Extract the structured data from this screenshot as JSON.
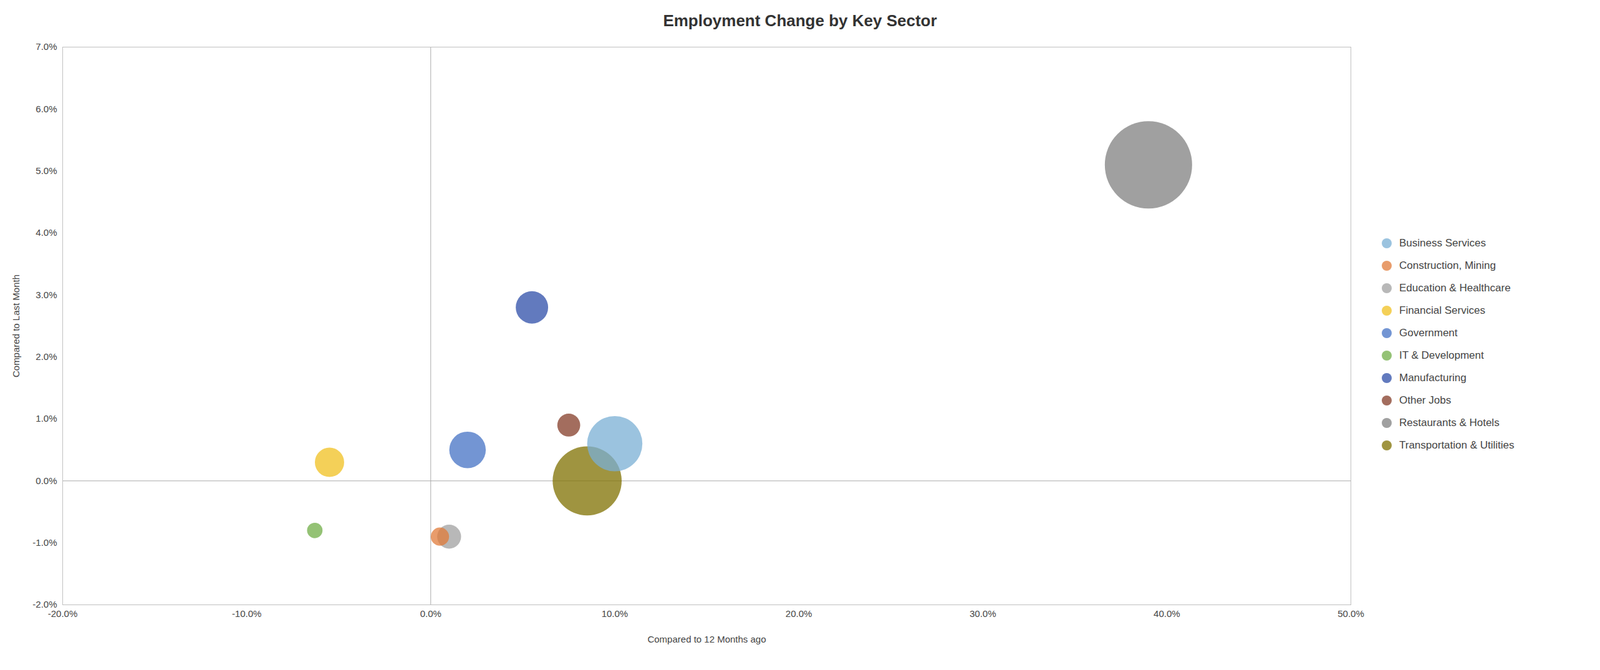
{
  "chart_data": {
    "type": "scatter",
    "title": "Employment Change by Key Sector",
    "xlabel": "Compared to 12 Months ago",
    "ylabel": "Compared to Last Month",
    "xlim": [
      -0.2,
      0.5
    ],
    "ylim": [
      -0.02,
      0.07
    ],
    "xticks": [
      {
        "value": -0.2,
        "label": "-20.0%"
      },
      {
        "value": -0.1,
        "label": "-10.0%"
      },
      {
        "value": 0.0,
        "label": "0.0%"
      },
      {
        "value": 0.1,
        "label": "10.0%"
      },
      {
        "value": 0.2,
        "label": "20.0%"
      },
      {
        "value": 0.3,
        "label": "30.0%"
      },
      {
        "value": 0.4,
        "label": "40.0%"
      },
      {
        "value": 0.5,
        "label": "50.0%"
      }
    ],
    "yticks": [
      {
        "value": -0.02,
        "label": "-2.0%"
      },
      {
        "value": -0.01,
        "label": "-1.0%"
      },
      {
        "value": 0.0,
        "label": "0.0%"
      },
      {
        "value": 0.01,
        "label": "1.0%"
      },
      {
        "value": 0.02,
        "label": "2.0%"
      },
      {
        "value": 0.03,
        "label": "3.0%"
      },
      {
        "value": 0.04,
        "label": "4.0%"
      },
      {
        "value": 0.05,
        "label": "5.0%"
      },
      {
        "value": 0.06,
        "label": "6.0%"
      },
      {
        "value": 0.07,
        "label": "7.0%"
      }
    ],
    "grid": false,
    "legend": "right",
    "series": [
      {
        "name": "Business Services",
        "color": "#7aafd4",
        "x": [
          0.1
        ],
        "y": [
          0.006
        ],
        "size": [
          3200
        ]
      },
      {
        "name": "Construction, Mining",
        "color": "#e07b39",
        "x": [
          0.005
        ],
        "y": [
          -0.009
        ],
        "size": [
          350
        ]
      },
      {
        "name": "Education & Healthcare",
        "color": "#a0a0a0",
        "x": [
          0.01
        ],
        "y": [
          -0.009
        ],
        "size": [
          600
        ]
      },
      {
        "name": "Financial Services",
        "color": "#f0c020",
        "x": [
          -0.055
        ],
        "y": [
          0.003
        ],
        "size": [
          900
        ]
      },
      {
        "name": "Government",
        "color": "#4472c4",
        "x": [
          0.02
        ],
        "y": [
          0.005
        ],
        "size": [
          1400
        ]
      },
      {
        "name": "IT & Development",
        "color": "#70ad47",
        "x": [
          -0.063
        ],
        "y": [
          -0.008
        ],
        "size": [
          250
        ]
      },
      {
        "name": "Manufacturing",
        "color": "#2e4da8",
        "x": [
          0.055
        ],
        "y": [
          0.028
        ],
        "size": [
          1100
        ]
      },
      {
        "name": "Other Jobs",
        "color": "#843c28",
        "x": [
          0.075
        ],
        "y": [
          0.009
        ],
        "size": [
          550
        ]
      },
      {
        "name": "Restaurants & Hotels",
        "color": "#808080",
        "x": [
          0.39
        ],
        "y": [
          0.051
        ],
        "size": [
          8000
        ]
      },
      {
        "name": "Transportation & Utilities",
        "color": "#7f7000",
        "x": [
          0.085
        ],
        "y": [
          0.0
        ],
        "size": [
          5000
        ]
      }
    ]
  }
}
